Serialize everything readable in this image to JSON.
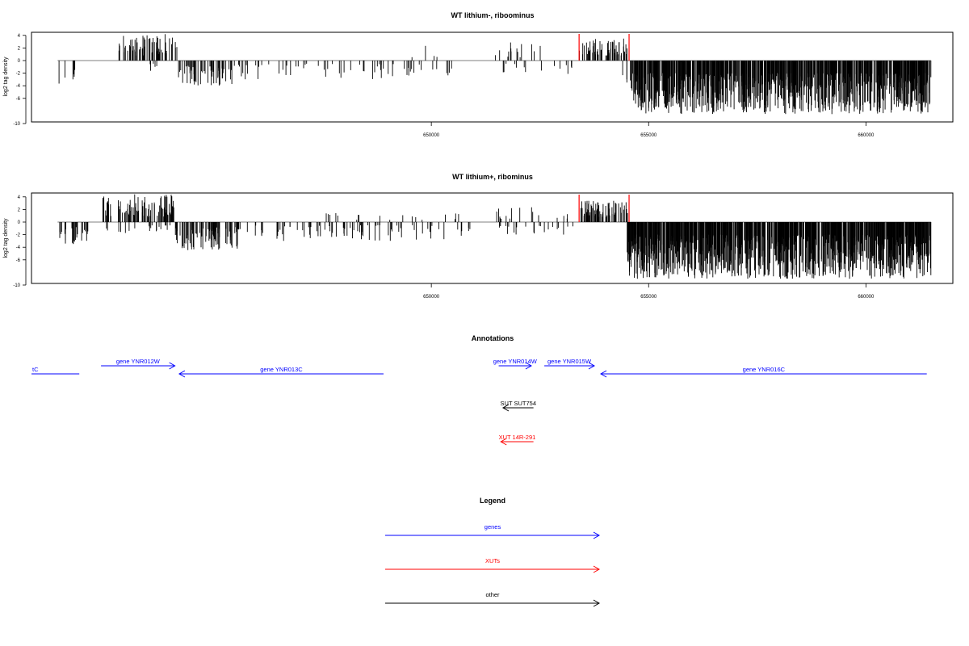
{
  "chart_data": [
    {
      "type": "bar",
      "title": "WT lithium-, riboominus",
      "ylabel": "log2 tag density",
      "xlabel": "",
      "xlim": [
        640800,
        662000
      ],
      "ylim": [
        -10,
        5
      ],
      "y_ticks": [
        "4",
        "2",
        "0",
        "-2",
        "-4",
        "-6",
        "-10"
      ],
      "y_tick_values": [
        4,
        2,
        0,
        -2,
        -4,
        -6,
        -10
      ],
      "x_ticks": [
        "650000",
        "655000",
        "660000"
      ],
      "x_tick_values": [
        650000,
        655000,
        660000
      ],
      "grid": false,
      "markers": [
        {
          "x": 653400,
          "color": "#ff0000"
        },
        {
          "x": 654550,
          "color": "#ff0000"
        }
      ],
      "density_regions": [
        {
          "start": 641400,
          "end": 641450,
          "side": "minus",
          "min": 3.5,
          "max": 4.2,
          "count": 1
        },
        {
          "start": 641500,
          "end": 641900,
          "side": "minus",
          "min": 1.0,
          "max": 3.0,
          "count": 5
        },
        {
          "start": 642800,
          "end": 644150,
          "side": "plus",
          "min": 0.8,
          "max": 4.2,
          "count": 70
        },
        {
          "start": 643500,
          "end": 643800,
          "side": "minus",
          "min": 0.5,
          "max": 1.8,
          "count": 6
        },
        {
          "start": 644150,
          "end": 645500,
          "side": "minus",
          "min": 0.8,
          "max": 4.0,
          "count": 55
        },
        {
          "start": 645500,
          "end": 650500,
          "side": "minus",
          "min": 0.5,
          "max": 3.0,
          "count": 60
        },
        {
          "start": 649500,
          "end": 650200,
          "side": "plus",
          "min": 0.5,
          "max": 2.5,
          "count": 4
        },
        {
          "start": 651400,
          "end": 652600,
          "side": "plus",
          "min": 0.5,
          "max": 3.0,
          "count": 14
        },
        {
          "start": 651400,
          "end": 653300,
          "side": "minus",
          "min": 0.5,
          "max": 2.2,
          "count": 15
        },
        {
          "start": 653400,
          "end": 654550,
          "side": "plus",
          "min": 0.8,
          "max": 3.5,
          "count": 60
        },
        {
          "start": 654400,
          "end": 654600,
          "side": "minus",
          "min": 2.0,
          "max": 3.5,
          "count": 4
        },
        {
          "start": 654600,
          "end": 661500,
          "side": "minus",
          "min": 2.0,
          "max": 8.5,
          "count": 900
        }
      ]
    },
    {
      "type": "bar",
      "title": "WT lithium+, ribominus",
      "ylabel": "log2 tag density",
      "xlabel": "",
      "xlim": [
        640800,
        662000
      ],
      "ylim": [
        -10,
        5
      ],
      "y_ticks": [
        "4",
        "2",
        "0",
        "-2",
        "-4",
        "-6",
        "-10"
      ],
      "y_tick_values": [
        4,
        2,
        0,
        -2,
        -4,
        -6,
        -10
      ],
      "x_ticks": [
        "650000",
        "655000",
        "660000"
      ],
      "x_tick_values": [
        650000,
        655000,
        660000
      ],
      "grid": false,
      "markers": [
        {
          "x": 653400,
          "color": "#ff0000"
        },
        {
          "x": 654550,
          "color": "#ff0000"
        }
      ],
      "density_regions": [
        {
          "start": 641400,
          "end": 642100,
          "side": "minus",
          "min": 0.8,
          "max": 3.5,
          "count": 28
        },
        {
          "start": 642400,
          "end": 644100,
          "side": "plus",
          "min": 0.8,
          "max": 4.5,
          "count": 90
        },
        {
          "start": 642500,
          "end": 644000,
          "side": "minus",
          "min": 0.5,
          "max": 1.8,
          "count": 20
        },
        {
          "start": 644100,
          "end": 645600,
          "side": "minus",
          "min": 0.8,
          "max": 4.5,
          "count": 90
        },
        {
          "start": 645600,
          "end": 651000,
          "side": "minus",
          "min": 0.5,
          "max": 3.0,
          "count": 80
        },
        {
          "start": 647500,
          "end": 650800,
          "side": "plus",
          "min": 0.3,
          "max": 1.5,
          "count": 18
        },
        {
          "start": 651500,
          "end": 653300,
          "side": "plus",
          "min": 0.5,
          "max": 2.5,
          "count": 16
        },
        {
          "start": 651400,
          "end": 653300,
          "side": "minus",
          "min": 0.5,
          "max": 2.0,
          "count": 22
        },
        {
          "start": 653400,
          "end": 654550,
          "side": "plus",
          "min": 0.8,
          "max": 3.5,
          "count": 65
        },
        {
          "start": 654500,
          "end": 661500,
          "side": "minus",
          "min": 2.0,
          "max": 9.0,
          "count": 1000
        }
      ]
    }
  ],
  "annotations": {
    "title": "Annotations",
    "xlim": [
      640800,
      662000
    ],
    "features": [
      {
        "label": "tC",
        "start": 640800,
        "end": 641900,
        "strand": "-",
        "row": 1,
        "color": "#0000ff",
        "arrow": false,
        "label_align": "start"
      },
      {
        "label": "gene YNR012W",
        "start": 642400,
        "end": 644100,
        "strand": "+",
        "row": 0,
        "color": "#0000ff",
        "arrow": true,
        "label_align": "middle"
      },
      {
        "label": "gene YNR013C",
        "start": 644200,
        "end": 648900,
        "strand": "-",
        "row": 1,
        "color": "#0000ff",
        "arrow": true,
        "label_align": "middle"
      },
      {
        "label": "gene YNR014W",
        "start": 651550,
        "end": 652300,
        "strand": "+",
        "row": 0,
        "color": "#0000ff",
        "arrow": true,
        "label_align": "middle"
      },
      {
        "label": "gene YNR015W",
        "start": 652600,
        "end": 653750,
        "strand": "+",
        "row": 0,
        "color": "#0000ff",
        "arrow": true,
        "label_align": "middle"
      },
      {
        "label": "gene YNR016C",
        "start": 653900,
        "end": 661400,
        "strand": "-",
        "row": 1,
        "color": "#0000ff",
        "arrow": true,
        "label_align": "middle"
      },
      {
        "label": "SUT SUT754",
        "start": 651650,
        "end": 652350,
        "strand": "-",
        "row": 2,
        "color": "#000000",
        "arrow": true,
        "label_align": "middle"
      },
      {
        "label": "XUT 14R-291",
        "start": 651600,
        "end": 652350,
        "strand": "-",
        "row": 3,
        "color": "#ff0000",
        "arrow": true,
        "label_align": "middle"
      }
    ]
  },
  "legend": {
    "title": "Legend",
    "items": [
      {
        "label": "genes",
        "color": "#0000ff"
      },
      {
        "label": "XUTs",
        "color": "#ff0000"
      },
      {
        "label": "other",
        "color": "#000000"
      }
    ]
  }
}
